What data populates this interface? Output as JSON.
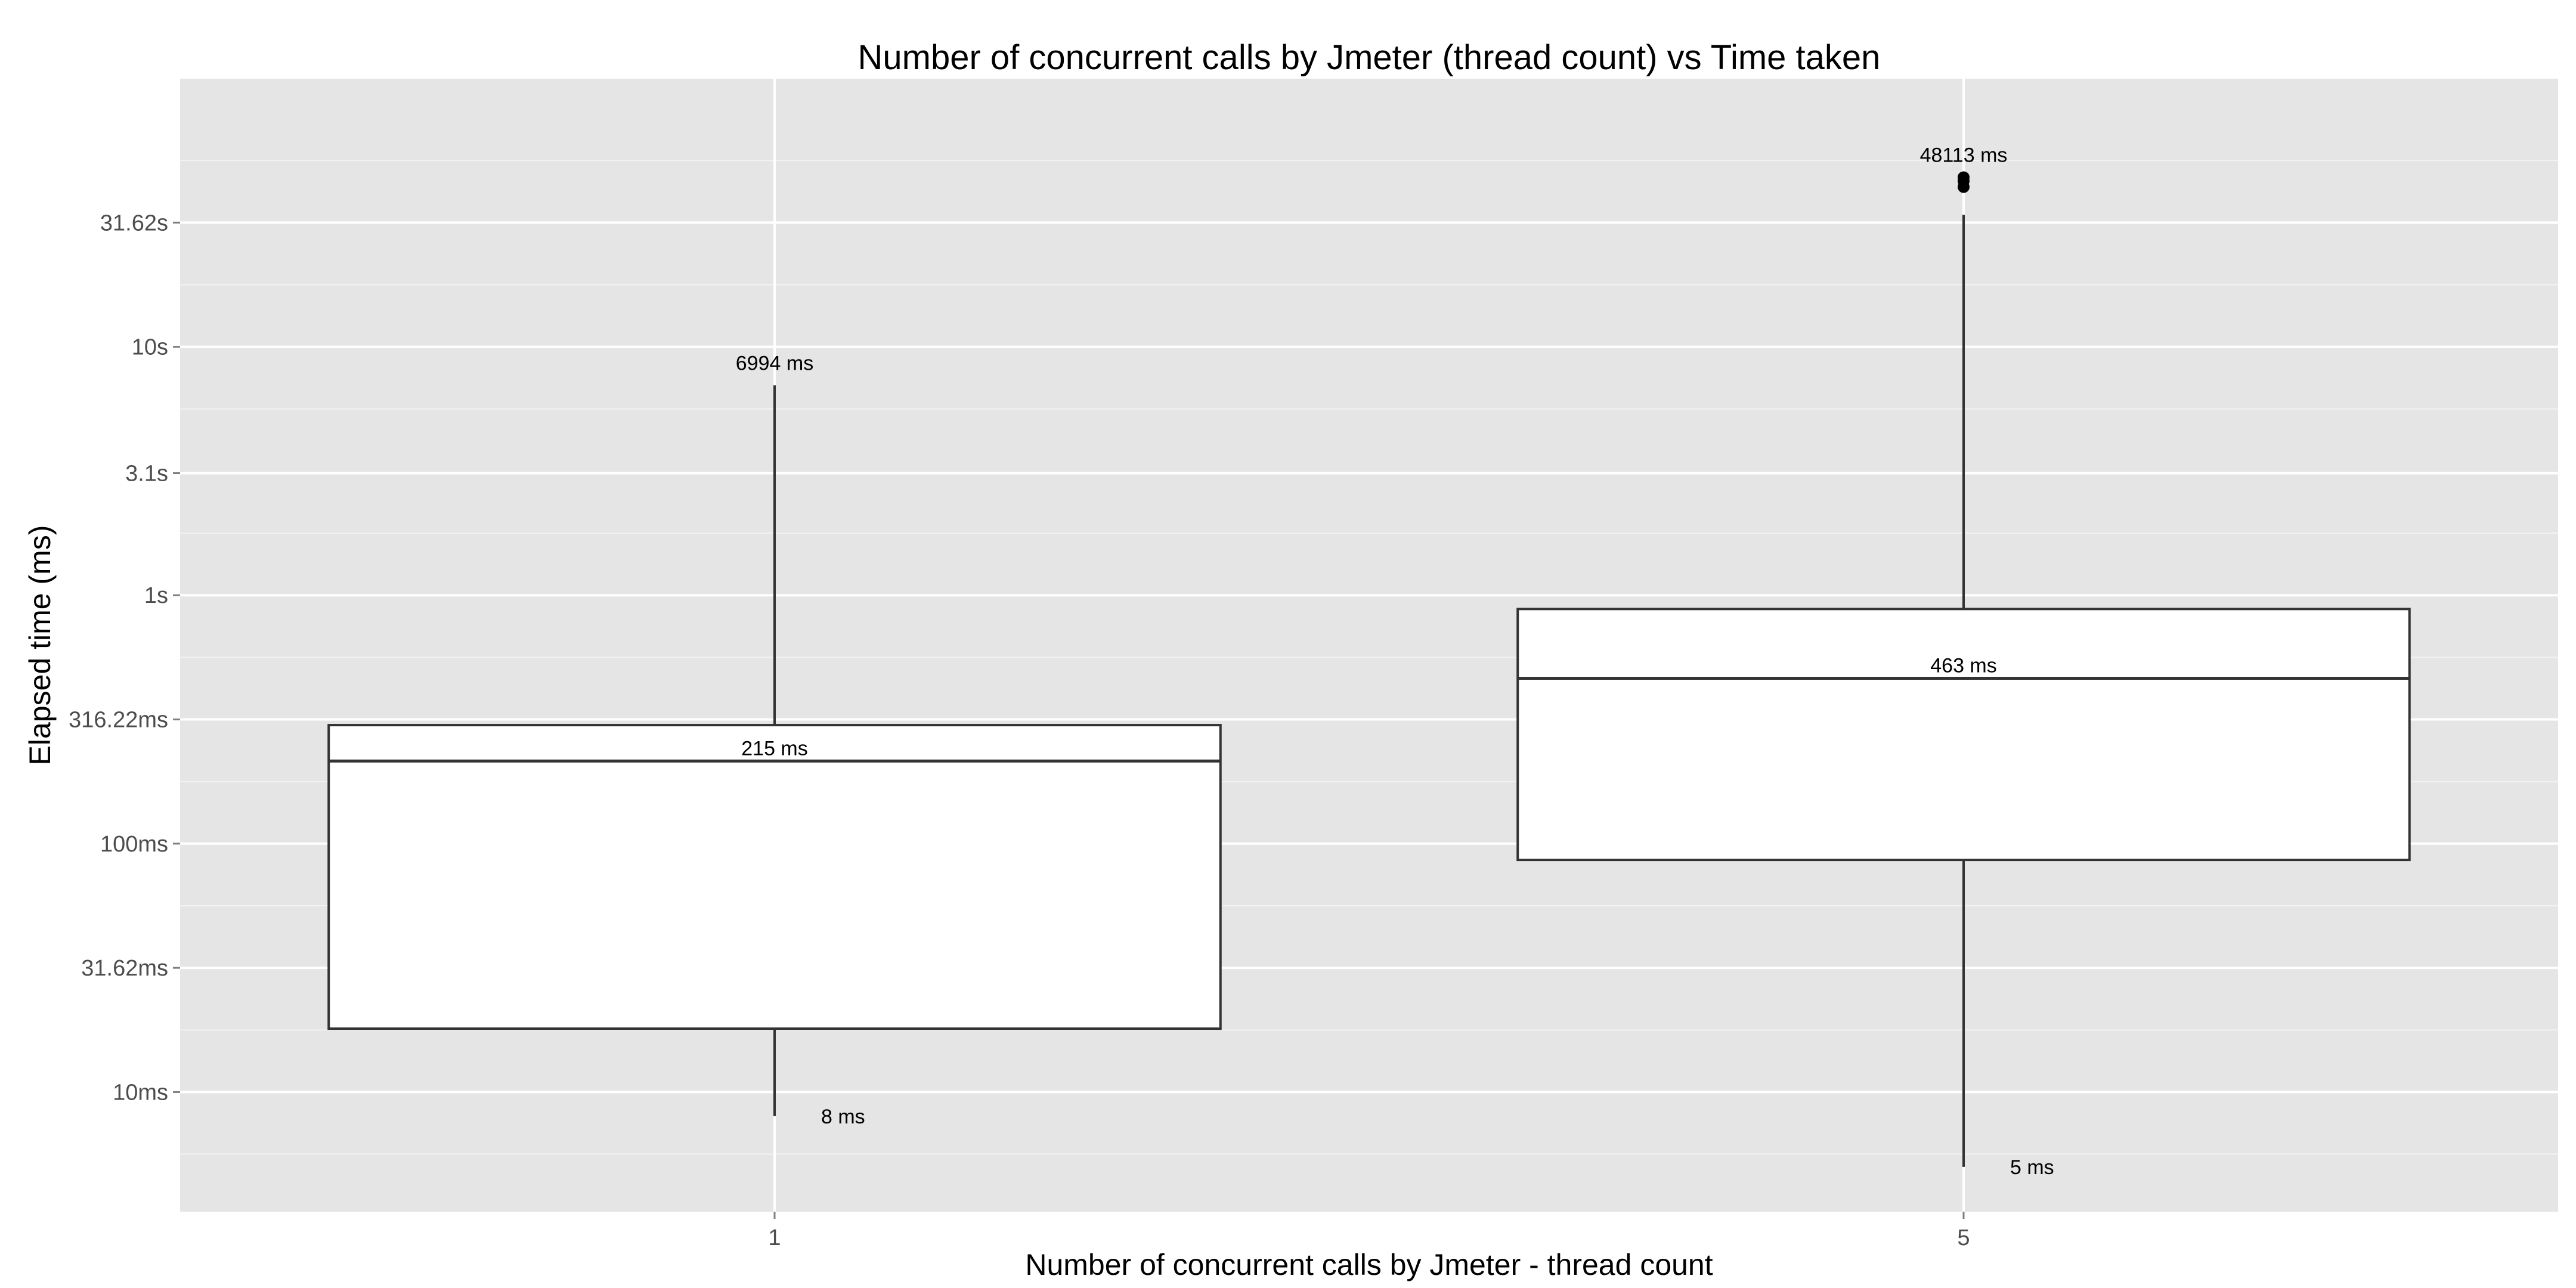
{
  "colors": {
    "panel_background": "#e5e5e5",
    "grid_major": "#ffffff",
    "grid_minor": "#f2f2f2",
    "box_fill": "#ffffff",
    "box_stroke": "#333333",
    "outlier": "#000000",
    "tick_text": "#4d4d4d"
  },
  "chart_data": {
    "type": "box",
    "title": "Number of concurrent calls by Jmeter (thread count) vs Time taken",
    "xlabel": "Number of concurrent calls by Jmeter - thread count",
    "ylabel": "Elapsed time (ms)",
    "y_scale": "log10",
    "y_unit": "ms",
    "ylim": [
      3.3,
      120000
    ],
    "y_ticks": [
      {
        "value": 10,
        "label": "10ms"
      },
      {
        "value": 31.62,
        "label": "31.62ms"
      },
      {
        "value": 100,
        "label": "100ms"
      },
      {
        "value": 316.22,
        "label": "316.22ms"
      },
      {
        "value": 1000,
        "label": "1s"
      },
      {
        "value": 3100,
        "label": "3.1s"
      },
      {
        "value": 10000,
        "label": "10s"
      },
      {
        "value": 31620,
        "label": "31.62s"
      }
    ],
    "grid": true,
    "categories": [
      "1",
      "5"
    ],
    "boxes": [
      {
        "category": "1",
        "min": 8,
        "q1": 18,
        "median": 215,
        "q3": 300,
        "max": 6994,
        "outliers": [],
        "labels": {
          "max": "6994 ms",
          "median": "215 ms",
          "min": "8 ms"
        }
      },
      {
        "category": "5",
        "min": 5,
        "q1": 86,
        "median": 463,
        "q3": 880,
        "max": 34000,
        "outliers": [
          44000,
          46500,
          48113
        ],
        "labels": {
          "max": "48113 ms",
          "median": "463 ms",
          "min": "5 ms"
        }
      }
    ]
  }
}
